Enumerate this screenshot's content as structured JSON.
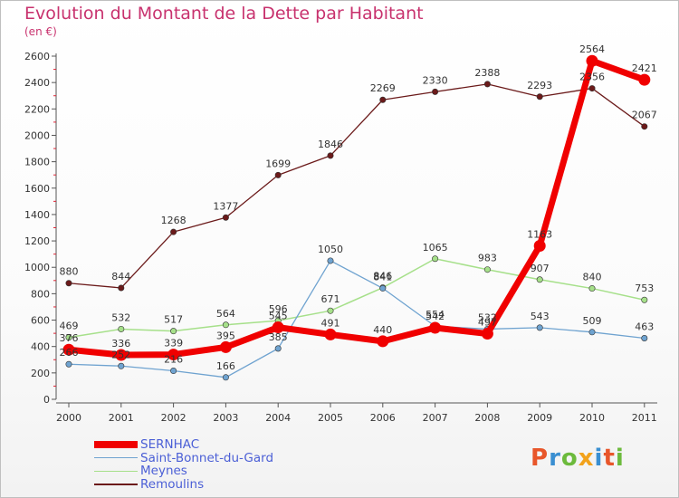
{
  "title": "Evolution du Montant de la Dette par Habitant",
  "subtitle": "(en €)",
  "logo": {
    "text": "Proxiti",
    "colors": [
      "#e8562a",
      "#3a8fd1",
      "#6cba3c",
      "#f2a21b",
      "#3a8fd1",
      "#e8562a",
      "#6cba3c"
    ]
  },
  "chart_data": {
    "type": "line",
    "x": [
      "2000",
      "2001",
      "2002",
      "2003",
      "2004",
      "2005",
      "2006",
      "2007",
      "2008",
      "2009",
      "2010",
      "2011"
    ],
    "ylim": [
      0,
      2600
    ],
    "yticks": [
      0,
      200,
      400,
      600,
      800,
      1000,
      1200,
      1400,
      1600,
      1800,
      2000,
      2200,
      2400,
      2600
    ],
    "grid": false,
    "legend": "bottom-left",
    "series": [
      {
        "name": "Remoulins",
        "color": "#6b1a1a",
        "width": 1.3,
        "values": [
          880,
          844,
          1268,
          1377,
          1699,
          1846,
          2269,
          2330,
          2388,
          2293,
          2356,
          2067
        ]
      },
      {
        "name": "Meynes",
        "color": "#a6e08a",
        "width": 1.5,
        "values": [
          469,
          532,
          517,
          564,
          596,
          671,
          846,
          1065,
          983,
          907,
          840,
          753
        ]
      },
      {
        "name": "Saint-Bonnet-du-Gard",
        "color": "#6fa3d0",
        "width": 1.3,
        "values": [
          266,
          252,
          216,
          166,
          385,
          1050,
          841,
          554,
          532,
          543,
          509,
          463
        ]
      },
      {
        "name": "SERNHAC",
        "color": "#f00000",
        "width": 7,
        "values": [
          376,
          336,
          339,
          395,
          545,
          491,
          440,
          542,
          497,
          1163,
          2564,
          2421
        ]
      }
    ]
  }
}
